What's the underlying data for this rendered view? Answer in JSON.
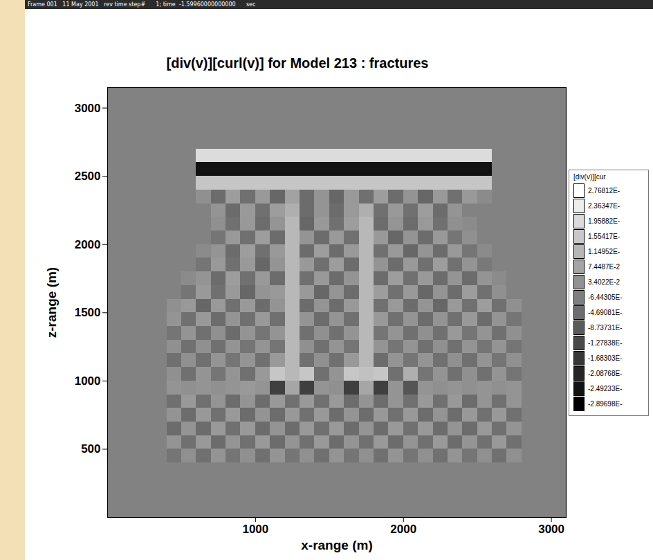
{
  "chart_data": {
    "type": "heatmap",
    "header": "Frame 001   11 May 2001   rev time step#      1; time  -1.59960000000000      sec",
    "title": "[div(v)][curl(v)] for Model 213 : fractures",
    "xlabel": "x-range (m)",
    "ylabel": "z-range (m)",
    "xlim": [
      0,
      3100
    ],
    "ylim": [
      0,
      3150
    ],
    "xticks": [
      1000,
      2000,
      3000
    ],
    "yticks": [
      500,
      1000,
      1500,
      2000,
      2500,
      3000
    ],
    "x": [
      450,
      550,
      650,
      750,
      850,
      950,
      1050,
      1150,
      1250,
      1350,
      1450,
      1550,
      1650,
      1750,
      1850,
      1950,
      2050,
      2150,
      2250,
      2350,
      2450,
      2550,
      2650,
      2750
    ],
    "y": [
      2650,
      2550,
      2450,
      2350,
      2250,
      2150,
      2050,
      1950,
      1850,
      1750,
      1650,
      1550,
      1450,
      1350,
      1250,
      1150,
      1050,
      950,
      850,
      750,
      650,
      550,
      450
    ],
    "values": [
      [
        0,
        0,
        0.2,
        0.2,
        0.2,
        0.2,
        0.2,
        0.2,
        0.2,
        0.2,
        0.2,
        0.2,
        0.2,
        0.2,
        0.2,
        0.2,
        0.2,
        0.2,
        0.2,
        0.2,
        0.2,
        0.2,
        0,
        0
      ],
      [
        0,
        0,
        -0.25,
        -0.25,
        -0.25,
        -0.25,
        -0.25,
        -0.25,
        -0.25,
        -0.25,
        -0.25,
        -0.25,
        -0.25,
        -0.25,
        -0.25,
        -0.25,
        -0.25,
        -0.25,
        -0.25,
        -0.25,
        -0.25,
        -0.25,
        0,
        0
      ],
      [
        0,
        0,
        0.15,
        0.15,
        0.15,
        0.15,
        0.15,
        0.15,
        0.15,
        0.15,
        0.15,
        0.15,
        0.15,
        0.15,
        0.15,
        0.15,
        0.15,
        0.15,
        0.15,
        0.15,
        0.15,
        0.15,
        0,
        0
      ],
      [
        0,
        0,
        0.03,
        -0.05,
        0.06,
        -0.04,
        0.05,
        -0.06,
        0.07,
        -0.05,
        0.04,
        -0.06,
        0.05,
        -0.04,
        0.06,
        -0.05,
        0.04,
        -0.06,
        0.05,
        -0.04,
        0.05,
        0.02,
        0,
        0
      ],
      [
        0,
        0,
        0,
        0.04,
        -0.05,
        0.05,
        -0.04,
        0.06,
        0.1,
        -0.05,
        0.04,
        -0.05,
        0.05,
        0.1,
        -0.04,
        0.05,
        -0.04,
        0.06,
        -0.05,
        0.04,
        0,
        0,
        0,
        0
      ],
      [
        0,
        0,
        0,
        0.03,
        -0.04,
        0.05,
        -0.05,
        0.04,
        0.12,
        -0.06,
        0.05,
        -0.04,
        0.06,
        0.12,
        -0.05,
        0.04,
        -0.05,
        0.05,
        -0.04,
        0.03,
        0.02,
        0,
        0,
        0
      ],
      [
        0,
        0,
        0,
        -0.03,
        0.05,
        -0.04,
        0.06,
        -0.05,
        0.12,
        0.04,
        -0.05,
        0.05,
        -0.04,
        0.12,
        0.05,
        -0.06,
        0.04,
        -0.05,
        0.05,
        -0.03,
        0.03,
        0,
        0,
        0
      ],
      [
        0,
        0,
        0.02,
        0.04,
        -0.05,
        0.06,
        -0.04,
        0.05,
        0.12,
        -0.05,
        0.06,
        -0.05,
        0.05,
        0.12,
        -0.04,
        0.05,
        -0.06,
        0.04,
        -0.05,
        0.05,
        -0.03,
        0.02,
        0,
        0
      ],
      [
        0,
        0,
        -0.03,
        0.05,
        -0.04,
        0.05,
        -0.06,
        0.04,
        0.12,
        0.05,
        -0.04,
        0.06,
        -0.05,
        0.12,
        0.04,
        -0.05,
        0.05,
        -0.04,
        0.06,
        -0.04,
        0.04,
        -0.02,
        0,
        0
      ],
      [
        0,
        0.02,
        0.04,
        -0.05,
        0.06,
        -0.04,
        0.05,
        -0.05,
        0.12,
        -0.04,
        0.05,
        -0.05,
        0.04,
        0.12,
        -0.05,
        0.06,
        -0.04,
        0.05,
        -0.05,
        0.04,
        -0.05,
        0.04,
        0.02,
        0
      ],
      [
        0,
        -0.03,
        0.05,
        -0.04,
        0.05,
        -0.06,
        0.04,
        0.05,
        0.12,
        0.05,
        -0.06,
        0.04,
        -0.05,
        0.12,
        0.06,
        -0.04,
        0.05,
        -0.06,
        0.04,
        -0.05,
        0.06,
        -0.04,
        0.03,
        0
      ],
      [
        0.03,
        0.05,
        -0.06,
        0.05,
        -0.04,
        0.05,
        -0.05,
        0.04,
        0.12,
        -0.05,
        0.04,
        -0.05,
        0.05,
        0.12,
        -0.04,
        0.05,
        -0.05,
        0.04,
        -0.06,
        0.05,
        -0.04,
        0.06,
        -0.04,
        0.03
      ],
      [
        0.04,
        -0.04,
        0.05,
        -0.05,
        0.04,
        -0.04,
        0.05,
        -0.04,
        0.12,
        0.04,
        -0.05,
        0.04,
        -0.04,
        0.12,
        0.05,
        -0.04,
        0.04,
        -0.05,
        0.04,
        -0.04,
        0.05,
        -0.05,
        0.04,
        -0.03
      ],
      [
        -0.03,
        0.04,
        -0.04,
        0.03,
        -0.05,
        0.04,
        -0.03,
        0.04,
        0.12,
        -0.04,
        0.03,
        -0.04,
        0.04,
        0.12,
        -0.03,
        0.04,
        -0.04,
        0.03,
        -0.04,
        0.05,
        -0.03,
        0.04,
        -0.04,
        0.03
      ],
      [
        0.03,
        -0.04,
        0.03,
        -0.04,
        0.04,
        -0.03,
        0.04,
        -0.03,
        0.12,
        0.03,
        -0.04,
        0.04,
        -0.03,
        0.12,
        0.04,
        -0.03,
        0.04,
        -0.04,
        0.03,
        -0.04,
        0.04,
        -0.03,
        0.04,
        -0.03
      ],
      [
        -0.04,
        0.03,
        -0.04,
        0.04,
        -0.03,
        0.04,
        -0.04,
        0.05,
        0.12,
        -0.04,
        0.03,
        -0.04,
        0.05,
        0.12,
        -0.05,
        0.04,
        -0.03,
        0.04,
        -0.04,
        0.03,
        -0.04,
        0.04,
        -0.03,
        0.03
      ],
      [
        0.03,
        -0.04,
        0.04,
        -0.03,
        0.04,
        -0.04,
        0.05,
        0.15,
        0.12,
        0.15,
        -0.04,
        0.04,
        0.15,
        0.14,
        0.15,
        -0.04,
        0.1,
        -0.03,
        0.04,
        -0.04,
        0.03,
        -0.04,
        0.04,
        -0.03
      ],
      [
        0.04,
        0.03,
        0.04,
        0.03,
        0.04,
        0.05,
        0.04,
        -0.15,
        0.08,
        -0.15,
        0.04,
        0.03,
        -0.15,
        0.08,
        -0.15,
        0.04,
        -0.1,
        0.04,
        0.03,
        0.04,
        0.03,
        0.04,
        0.03,
        0.04
      ],
      [
        -0.04,
        0.05,
        -0.04,
        0.04,
        -0.05,
        0.04,
        -0.05,
        0.05,
        -0.04,
        0.05,
        -0.04,
        0.05,
        -0.05,
        0.04,
        -0.05,
        0.04,
        -0.04,
        0.05,
        -0.04,
        0.05,
        -0.05,
        0.04,
        -0.04,
        0.04
      ],
      [
        0.04,
        -0.05,
        0.05,
        -0.04,
        0.05,
        -0.05,
        0.04,
        -0.05,
        0.05,
        -0.04,
        0.05,
        -0.05,
        0.04,
        -0.05,
        0.05,
        -0.04,
        0.05,
        -0.05,
        0.04,
        -0.05,
        0.05,
        -0.04,
        0.05,
        -0.04
      ],
      [
        -0.05,
        0.04,
        -0.05,
        0.05,
        -0.04,
        0.05,
        -0.05,
        0.04,
        -0.05,
        0.05,
        -0.04,
        0.05,
        -0.05,
        0.04,
        -0.05,
        0.05,
        -0.04,
        0.05,
        -0.05,
        0.04,
        -0.05,
        0.05,
        -0.04,
        0.04
      ],
      [
        0.04,
        -0.04,
        0.05,
        -0.05,
        0.04,
        -0.04,
        0.05,
        -0.05,
        0.04,
        -0.04,
        0.05,
        -0.05,
        0.04,
        -0.04,
        0.05,
        -0.05,
        0.04,
        -0.04,
        0.05,
        -0.05,
        0.04,
        -0.04,
        0.05,
        -0.04
      ],
      [
        -0.03,
        0.03,
        -0.04,
        0.04,
        -0.03,
        0.03,
        -0.04,
        0.04,
        -0.03,
        0.03,
        -0.04,
        0.04,
        -0.03,
        0.03,
        -0.04,
        0.04,
        -0.03,
        0.03,
        -0.04,
        0.04,
        -0.03,
        0.03,
        -0.04,
        0.03
      ]
    ],
    "colorbar": {
      "title": "[div(v)][cur",
      "range": [
        -0.289698,
        0.276812
      ],
      "ticks": [
        {
          "value": 0.276812,
          "label": "2.76812E-"
        },
        {
          "value": 0.236347,
          "label": "2.36347E-"
        },
        {
          "value": 0.195882,
          "label": "1.95882E-"
        },
        {
          "value": 0.155417,
          "label": "1.55417E-"
        },
        {
          "value": 0.114952,
          "label": "1.14952E-"
        },
        {
          "value": 0.074487,
          "label": "7.4487E-2"
        },
        {
          "value": 0.034022,
          "label": "3.4022E-2"
        },
        {
          "value": -0.00644305,
          "label": "-6.44305E-"
        },
        {
          "value": -0.0469081,
          "label": "-4.69081E-"
        },
        {
          "value": -0.0873731,
          "label": "-8.73731E-"
        },
        {
          "value": -0.127838,
          "label": "-1.27838E-"
        },
        {
          "value": -0.168303,
          "label": "-1.68303E-"
        },
        {
          "value": -0.208768,
          "label": "-2.08768E-"
        },
        {
          "value": -0.249233,
          "label": "-2.49233E-"
        },
        {
          "value": -0.289698,
          "label": "-2.89698E-"
        }
      ]
    }
  }
}
